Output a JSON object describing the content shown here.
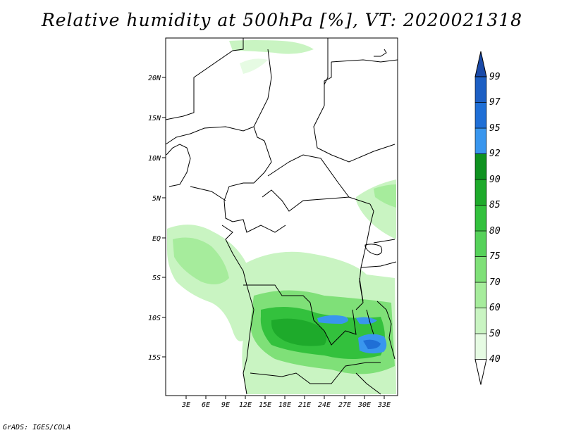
{
  "title": "Relative humidity at 500hPa [%], VT: 2020021318",
  "credit": "GrADS: IGES/COLA",
  "map": {
    "lat_labels": [
      "20N",
      "15N",
      "10N",
      "5N",
      "EQ",
      "5S",
      "10S",
      "15S"
    ],
    "lon_labels": [
      "3E",
      "6E",
      "9E",
      "12E",
      "15E",
      "18E",
      "21E",
      "24E",
      "27E",
      "30E",
      "33E"
    ]
  },
  "colorbar": {
    "labels": [
      "99",
      "97",
      "95",
      "92",
      "90",
      "85",
      "80",
      "75",
      "70",
      "60",
      "50",
      "40"
    ],
    "colors": [
      "#ffffff",
      "#e6fbe3",
      "#c9f4c2",
      "#a6ec9c",
      "#7fe078",
      "#56d25a",
      "#33c13d",
      "#1eaa2b",
      "#0f9220",
      "#3996ee",
      "#1f6fd6",
      "#1d5fc4",
      "#1a4aa8"
    ]
  }
}
